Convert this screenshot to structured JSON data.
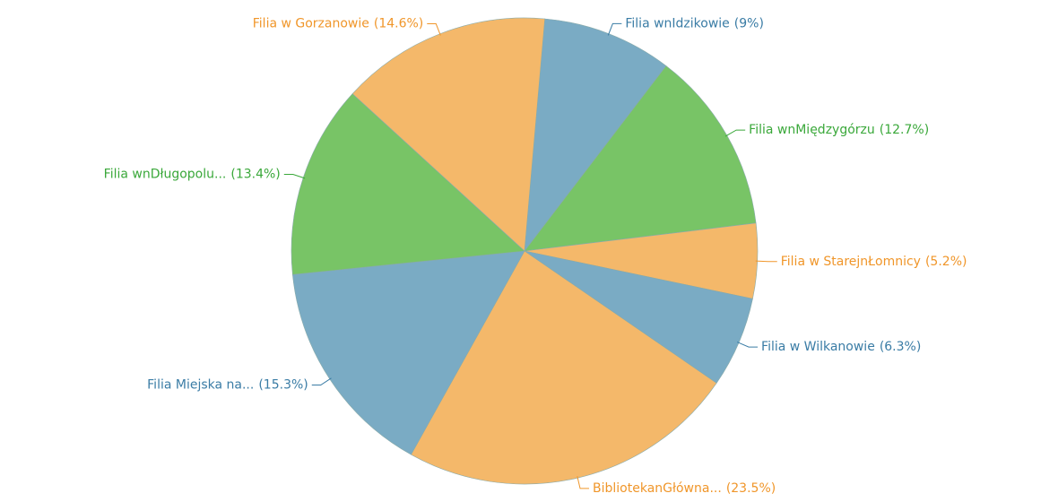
{
  "chart_data": {
    "type": "pie",
    "categories": [
      "Filia wnIdzikowie",
      "Filia wnMiędzygórzu",
      "Filia w StarejnŁomnicy",
      "Filia w Wilkanowie",
      "BibliotekanGłówna...",
      "Filia Miejska na...",
      "Filia wnDługopolu...",
      "Filia w Gorzanowie"
    ],
    "values": [
      9,
      12.7,
      5.2,
      6.3,
      23.5,
      15.3,
      13.4,
      14.6
    ],
    "value_labels": [
      "(9%)",
      "(12.7%)",
      "(5.2%)",
      "(6.3%)",
      "(23.5%)",
      "(15.3%)",
      "(13.4%)",
      "(14.6%)"
    ],
    "colors": [
      "#7aabc4",
      "#78c466",
      "#f4b86a",
      "#7aabc4",
      "#f4b86a",
      "#7aabc4",
      "#78c466",
      "#f4b86a"
    ],
    "label_colors": [
      "#3a7ca5",
      "#3aa83a",
      "#f0962a",
      "#3a7ca5",
      "#f0962a",
      "#3a7ca5",
      "#3aa83a",
      "#f0962a"
    ]
  }
}
